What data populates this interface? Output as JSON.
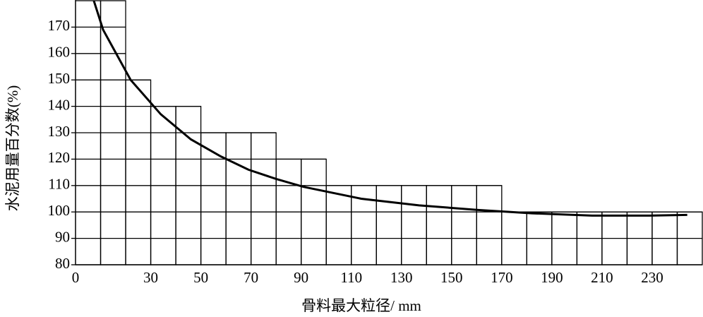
{
  "chart_data": {
    "type": "line",
    "x_label": "骨料最大粒径/ mm",
    "y_label": "水泥用量百分数(%)",
    "xlim": [
      0,
      250
    ],
    "ylim": [
      80,
      180
    ],
    "xticks": [
      0,
      30,
      50,
      70,
      90,
      110,
      130,
      150,
      170,
      190,
      210,
      230
    ],
    "yticks": [
      80,
      90,
      100,
      110,
      120,
      130,
      140,
      150,
      160,
      170
    ],
    "bins": [
      0,
      10,
      20,
      30,
      40,
      50,
      60,
      70,
      80,
      90,
      100,
      110,
      120,
      130,
      140,
      150,
      160,
      170,
      180,
      190,
      200,
      210,
      220,
      230,
      240,
      250
    ],
    "step_values": [
      180,
      180,
      150,
      140,
      140,
      130,
      130,
      130,
      120,
      120,
      110,
      110,
      110,
      110,
      110,
      110,
      110,
      100,
      100,
      100,
      100,
      100,
      100,
      100,
      100
    ],
    "grid": true,
    "series": [
      {
        "color": "#000000",
        "x": [
          7.3,
          11,
          22,
          34,
          46,
          58,
          69,
          80,
          91,
          114,
          137,
          160,
          182,
          206,
          229,
          244
        ],
        "values": [
          180,
          169,
          150,
          137,
          127.5,
          121,
          116,
          112.5,
          109.5,
          105,
          102.5,
          100.8,
          99.5,
          98.6,
          98.6,
          98.9
        ]
      }
    ]
  }
}
